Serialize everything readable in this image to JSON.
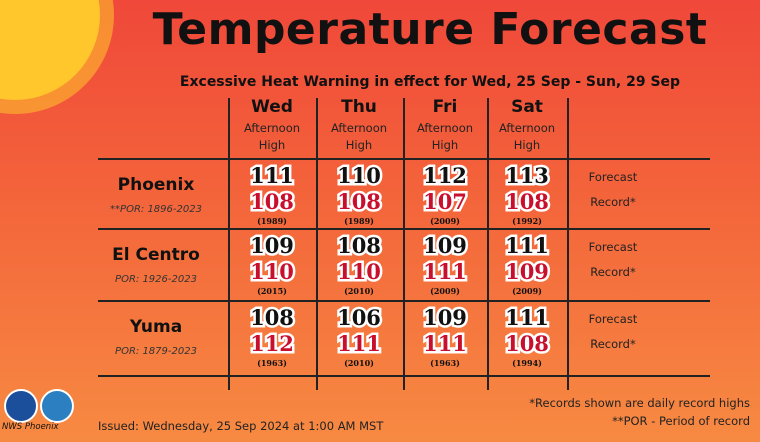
{
  "header": {
    "title": "Temperature Forecast",
    "subtitle": "Excessive Heat Warning in effect for Wed, 25 Sep - Sun, 29 Sep"
  },
  "table": {
    "columns": [
      {
        "day": "Wed",
        "label": "Afternoon High"
      },
      {
        "day": "Thu",
        "label": "Afternoon High"
      },
      {
        "day": "Fri",
        "label": "Afternoon High"
      },
      {
        "day": "Sat",
        "label": "Afternoon High"
      }
    ],
    "rows": [
      {
        "city": "Phoenix",
        "por": "**POR: 1896-2023",
        "forecast": [
          111,
          110,
          112,
          113
        ],
        "record": [
          108,
          108,
          107,
          108
        ],
        "record_years": [
          "(1989)",
          "(1989)",
          "(2009)",
          "(1992)"
        ],
        "forecast_label": "Forecast",
        "record_label": "Record*"
      },
      {
        "city": "El Centro",
        "por": "POR: 1926-2023",
        "forecast": [
          109,
          108,
          109,
          111
        ],
        "record": [
          110,
          110,
          111,
          109
        ],
        "record_years": [
          "(2015)",
          "(2010)",
          "(2009)",
          "(2009)"
        ],
        "forecast_label": "Forecast",
        "record_label": "Record*"
      },
      {
        "city": "Yuma",
        "por": "POR: 1879-2023",
        "forecast": [
          108,
          106,
          109,
          111
        ],
        "record": [
          112,
          111,
          111,
          108
        ],
        "record_years": [
          "(1963)",
          "(2010)",
          "(1963)",
          "(1994)"
        ],
        "forecast_label": "Forecast",
        "record_label": "Record*"
      }
    ]
  },
  "footer": {
    "notes": [
      "*Records shown are daily record highs",
      "**POR - Period of record"
    ],
    "issued": "Issued: Wednesday, 25 Sep 2024 at 1:00 AM MST",
    "logo": "NWS Phoenix"
  }
}
